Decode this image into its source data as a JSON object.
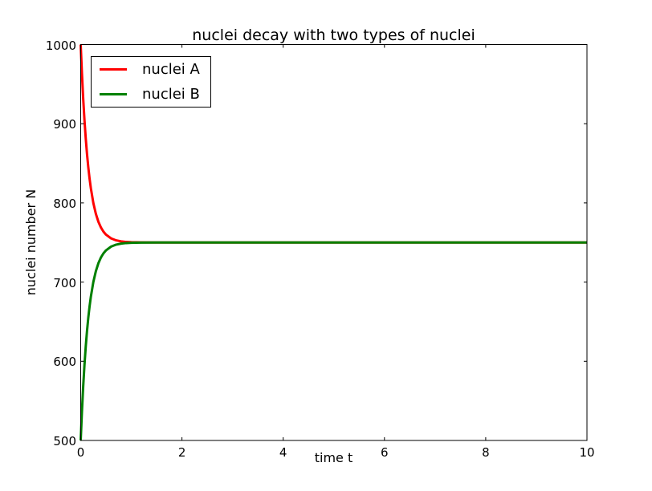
{
  "figure": {
    "background": "#ffffff",
    "axes_color": "#000000"
  },
  "legend": {
    "position": "upper-left",
    "entries": [
      {
        "label": "nuclei A",
        "color": "#ff0000"
      },
      {
        "label": "nuclei B",
        "color": "#008000"
      }
    ]
  },
  "chart_data": {
    "type": "line",
    "title": "nuclei decay with two types of nuclei",
    "xlabel": "time t",
    "ylabel": "nuclei number N",
    "xlim": [
      0,
      10
    ],
    "ylim": [
      500,
      1000
    ],
    "xticks": [
      0,
      2,
      4,
      6,
      8,
      10
    ],
    "yticks": [
      500,
      600,
      700,
      800,
      900,
      1000
    ],
    "grid": false,
    "legend_position": "upper left",
    "x": [
      0,
      0.025,
      0.05,
      0.075,
      0.1,
      0.125,
      0.15,
      0.175,
      0.2,
      0.25,
      0.3,
      0.35,
      0.4,
      0.45,
      0.5,
      0.6,
      0.7,
      0.8,
      0.9,
      1.0,
      1.2,
      1.5,
      2,
      3,
      4,
      5,
      6,
      7,
      8,
      9,
      10
    ],
    "series": [
      {
        "name": "nuclei A",
        "color": "#ff0000",
        "linewidth": 3,
        "values": [
          1000,
          962.8,
          931.1,
          904.1,
          881.2,
          861.6,
          845.0,
          830.8,
          818.8,
          799.8,
          786.1,
          776.1,
          768.9,
          763.7,
          759.9,
          755.2,
          752.7,
          751.4,
          750.7,
          750.4,
          750.1,
          750,
          750,
          750,
          750,
          750,
          750,
          750,
          750,
          750,
          750
        ]
      },
      {
        "name": "nuclei B",
        "color": "#008000",
        "linewidth": 3,
        "values": [
          500,
          537.2,
          568.9,
          595.9,
          618.8,
          638.4,
          655.0,
          669.2,
          681.2,
          700.2,
          713.9,
          723.9,
          731.1,
          736.3,
          740.1,
          744.8,
          747.3,
          748.6,
          749.3,
          749.6,
          749.9,
          750,
          750,
          750,
          750,
          750,
          750,
          750,
          750,
          750,
          750
        ]
      }
    ]
  }
}
